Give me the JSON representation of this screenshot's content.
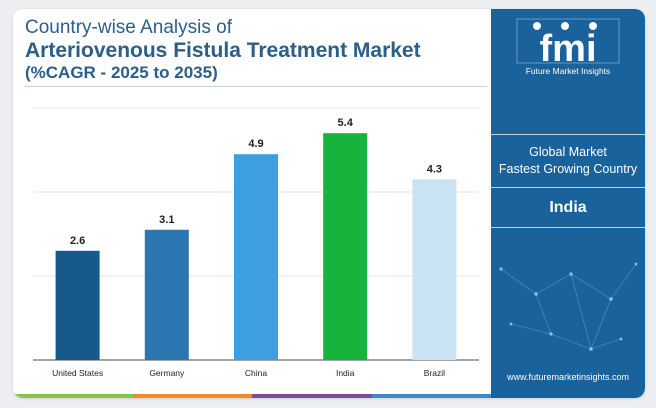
{
  "header": {
    "title_line1": "Country-wise Analysis of",
    "title_line2": "Arteriovenous Fistula Treatment Market",
    "title_line3": "(%CAGR - 2025 to 2035)"
  },
  "side_panel": {
    "logo_text": "fmi",
    "logo_subtitle": "Future Market Insights",
    "label_line1": "Global Market",
    "label_line2": "Fastest Growing Country",
    "value": "India",
    "url": "www.futuremarketinsights.com"
  },
  "colors": {
    "title": "#2a5f8a",
    "panel": "#19629c",
    "bars": [
      "#165a8b",
      "#2a76b0",
      "#3d9ee0",
      "#17b33c",
      "#c9e3f5"
    ],
    "strip": [
      "#8bc34a",
      "#f08a24",
      "#7b4b9c",
      "#3e88c6"
    ]
  },
  "chart_data": {
    "type": "bar",
    "categories": [
      "United States",
      "Germany",
      "China",
      "India",
      "Brazil"
    ],
    "values": [
      2.6,
      3.1,
      4.9,
      5.4,
      4.3
    ],
    "value_labels": [
      "2.6",
      "3.1",
      "4.9",
      "5.4",
      "4.3"
    ],
    "ylim": [
      0,
      6
    ],
    "grid": true,
    "title": "",
    "xlabel": "",
    "ylabel": ""
  }
}
